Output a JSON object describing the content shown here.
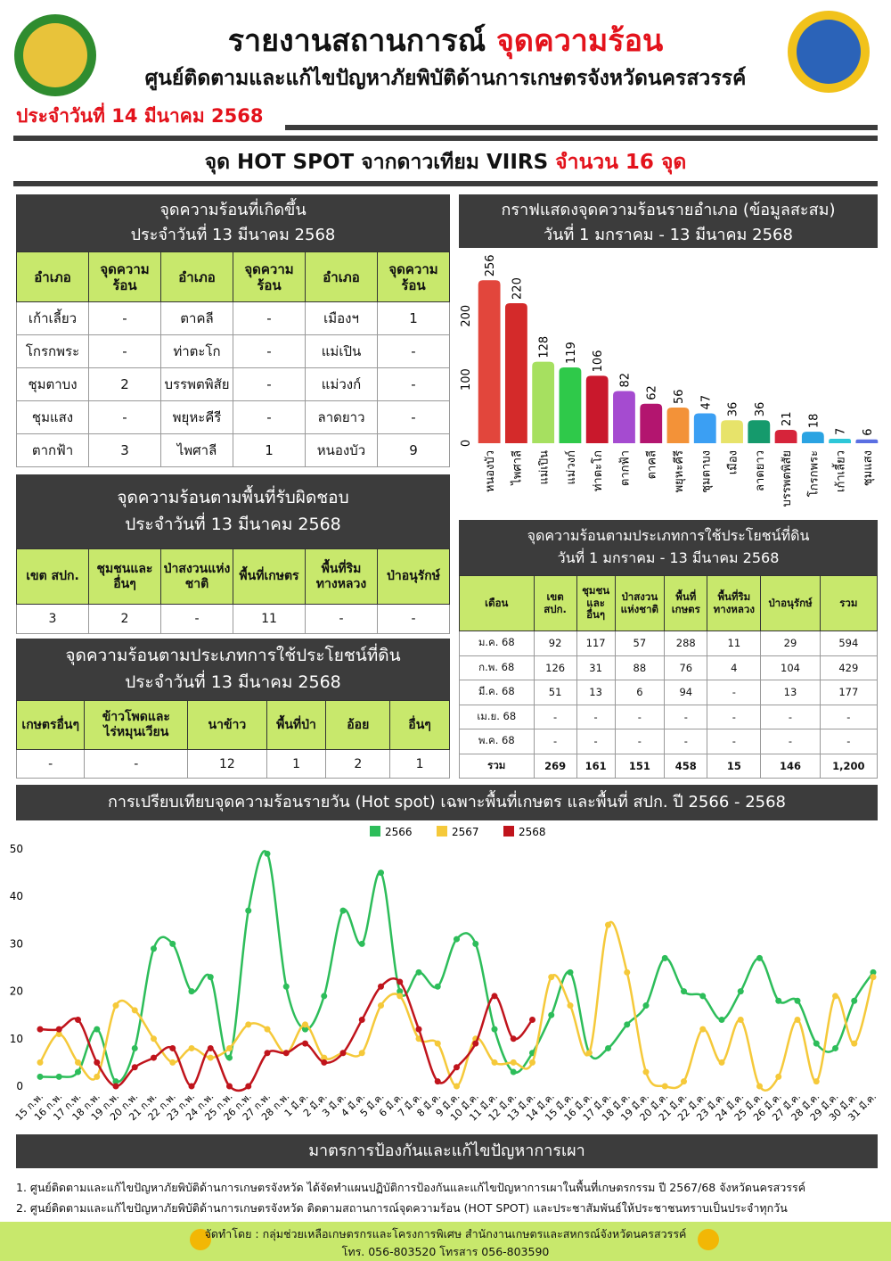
{
  "header": {
    "title_main": "รายงานสถานการณ์",
    "title_highlight": "จุดความร้อน",
    "subtitle": "ศูนย์ติดตามและแก้ไขปัญหาภัยพิบัติด้านการเกษตรจังหวัดนครสวรรค์",
    "date": "ประจำวันที่ 14 มีนาคม 2568"
  },
  "banner": {
    "text": "จุด HOT SPOT จากดาวเทียม VIIRS",
    "count": "จำนวน 16 จุด"
  },
  "tables": [
    {
      "title": [
        "จุดความร้อนที่เกิดขึ้น",
        "ประจำวันที่ 13 มีนาคม 2568"
      ],
      "header": [
        "อำเภอ",
        "จุดความ\nร้อน",
        "อำเภอ",
        "จุดความ\nร้อน",
        "อำเภอ",
        "จุดความ\nร้อน"
      ],
      "rows": [
        [
          "เก้าเลี้ยว",
          "-",
          "ตาคลี",
          "-",
          "เมืองฯ",
          "1"
        ],
        [
          "โกรกพระ",
          "-",
          "ท่าตะโก",
          "-",
          "แม่เปิน",
          "-"
        ],
        [
          "ชุมตาบง",
          "2",
          "บรรพตพิสัย",
          "-",
          "แม่วงก์",
          "-"
        ],
        [
          "ชุมแสง",
          "-",
          "พยุหะคีรี",
          "-",
          "ลาดยาว",
          "-"
        ],
        [
          "ตากฟ้า",
          "3",
          "ไพศาลี",
          "1",
          "หนองบัว",
          "9"
        ]
      ]
    },
    {
      "title": [
        "จุดความร้อนตามพื้นที่รับผิดชอบ",
        "ประจำวันที่ 13 มีนาคม 2568"
      ],
      "header": [
        "เขต สปก.",
        "ชุมชนและ\nอื่นๆ",
        "ป่าสงวนแห่ง\nชาติ",
        "พื้นที่เกษตร",
        "พื้นที่ริม\nทางหลวง",
        "ป่าอนุรักษ์"
      ],
      "rows": [
        [
          "3",
          "2",
          "-",
          "11",
          "-",
          "-"
        ]
      ]
    },
    {
      "title": [
        "จุดความร้อนตามประเภทการใช้ประโยชน์ที่ดิน",
        "ประจำวันที่ 13 มีนาคม 2568"
      ],
      "header": [
        "เกษตรอื่นๆ",
        "ข้าวโพดและ\nไร่หมุนเวียน",
        "นาข้าว",
        "พื้นที่ป่า",
        "อ้อย",
        "อื่นๆ"
      ],
      "rows": [
        [
          "-",
          "-",
          "12",
          "1",
          "2",
          "1"
        ]
      ]
    },
    {
      "title": [
        "จุดความร้อนตามประเภทการใช้ประโยชน์ที่ดิน",
        "วันที่ 1 มกราคม - 13 มีนาคม 2568"
      ],
      "header": [
        "เดือน",
        "เขต\nสปก.",
        "ชุมชน\nและ\nอื่นๆ",
        "ป่าสงวน\nแห่งชาติ",
        "พื้นที่\nเกษตร",
        "พื้นที่ริม\nทางหลวง",
        "ป่าอนุรักษ์",
        "รวม"
      ],
      "rows": [
        [
          "ม.ค. 68",
          "92",
          "117",
          "57",
          "288",
          "11",
          "29",
          "594"
        ],
        [
          "ก.พ. 68",
          "126",
          "31",
          "88",
          "76",
          "4",
          "104",
          "429"
        ],
        [
          "มี.ค. 68",
          "51",
          "13",
          "6",
          "94",
          "-",
          "13",
          "177"
        ],
        [
          "เม.ย. 68",
          "-",
          "-",
          "-",
          "-",
          "-",
          "-",
          "-"
        ],
        [
          "พ.ค. 68",
          "-",
          "-",
          "-",
          "-",
          "-",
          "-",
          "-"
        ],
        [
          "รวม",
          "269",
          "161",
          "151",
          "458",
          "15",
          "146",
          "1,200"
        ]
      ]
    }
  ],
  "chart_data": [
    {
      "type": "bar",
      "title": [
        "กราฟแสดงจุดความร้อนรายอำเภอ (ข้อมูลสะสม)",
        "วันที่ 1 มกราคม - 13 มีนาคม 2568"
      ],
      "categories": [
        "หนองบัว",
        "ไพศาลี",
        "แม่เปิน",
        "แม่วงก์",
        "ท่าตะโก",
        "ตากฟ้า",
        "ตาคลี",
        "พยุหะคีรี",
        "ชุมตาบง",
        "เมือง",
        "ลาดยาว",
        "บรรพตพิสัย",
        "โกรกพระ",
        "เก้าเลี้ยว",
        "ชุมแสง"
      ],
      "values": [
        256,
        220,
        128,
        119,
        106,
        82,
        62,
        56,
        47,
        36,
        36,
        21,
        18,
        7,
        6
      ],
      "colors": [
        "#e2463c",
        "#d42a2a",
        "#a6e060",
        "#2fc94a",
        "#c9182c",
        "#a54bd0",
        "#b3156f",
        "#f39238",
        "#3b9ff3",
        "#e7e36a",
        "#159a6c",
        "#d6243a",
        "#2aa3e2",
        "#2dc7d8",
        "#5a6fe2"
      ],
      "ylim": [
        0,
        290
      ],
      "yticks": [
        0,
        100,
        200
      ]
    },
    {
      "type": "line",
      "title": "การเปรียบเทียบจุดความร้อนรายวัน (Hot spot)  เฉพาะพื้นที่เกษตร และพื้นที่ สปก. ปี 2566 - 2568",
      "categories": [
        "15 ก.พ.",
        "16 ก.พ.",
        "17 ก.พ.",
        "18 ก.พ.",
        "19 ก.พ.",
        "20 ก.พ.",
        "21 ก.พ.",
        "22 ก.พ.",
        "23 ก.พ.",
        "24 ก.พ.",
        "25 ก.พ.",
        "26 ก.พ.",
        "27 ก.พ.",
        "28 ก.พ.",
        "1 มี.ค.",
        "2 มี.ค.",
        "3 มี.ค.",
        "4 มี.ค.",
        "5 มี.ค.",
        "6 มี.ค.",
        "7 มี.ค.",
        "8 มี.ค.",
        "9 มี.ค.",
        "10 มี.ค.",
        "11 มี.ค.",
        "12 มี.ค.",
        "13 มี.ค.",
        "14 มี.ค.",
        "15 มี.ค.",
        "16 มี.ค.",
        "17 มี.ค.",
        "18 มี.ค.",
        "19 มี.ค.",
        "20 มี.ค.",
        "21 มี.ค.",
        "22 มี.ค.",
        "23 มี.ค.",
        "24 มี.ค.",
        "25 มี.ค.",
        "26 มี.ค.",
        "27 มี.ค.",
        "28 มี.ค.",
        "29 มี.ค.",
        "30 มี.ค.",
        "31 มี.ค."
      ],
      "series": [
        {
          "name": "2566",
          "color": "#2dbd5a",
          "values": [
            2,
            2,
            3,
            12,
            1,
            8,
            29,
            30,
            20,
            23,
            6,
            37,
            49,
            21,
            12,
            19,
            37,
            30,
            45,
            20,
            24,
            21,
            31,
            30,
            12,
            3,
            7,
            15,
            24,
            7,
            8,
            13,
            17,
            27,
            20,
            19,
            14,
            20,
            27,
            18,
            18,
            9,
            8,
            18,
            24
          ]
        },
        {
          "name": "2567",
          "color": "#f5c93a",
          "values": [
            5,
            11,
            5,
            2,
            17,
            16,
            10,
            5,
            8,
            6,
            8,
            13,
            12,
            7,
            13,
            6,
            7,
            7,
            17,
            19,
            10,
            9,
            0,
            10,
            5,
            5,
            5,
            23,
            17,
            7,
            34,
            24,
            3,
            0,
            1,
            12,
            5,
            14,
            0,
            2,
            14,
            1,
            19,
            9,
            23
          ]
        },
        {
          "name": "2568",
          "color": "#c0141c",
          "values": [
            12,
            12,
            14,
            5,
            0,
            4,
            6,
            8,
            0,
            8,
            0,
            0,
            7,
            7,
            9,
            5,
            7,
            14,
            21,
            22,
            12,
            1,
            4,
            9,
            19,
            10,
            14,
            null,
            null,
            null,
            null,
            null,
            null,
            null,
            null,
            null,
            null,
            null,
            null,
            null,
            null,
            null,
            null,
            null,
            null
          ]
        }
      ],
      "ylim": [
        0,
        50
      ],
      "yticks": [
        0,
        10,
        20,
        30,
        40,
        50
      ]
    }
  ],
  "measures": {
    "title": "มาตรการป้องกันและแก้ไขปัญหาการเผา",
    "items": [
      "1. ศูนย์ติดตามและแก้ไขปัญหาภัยพิบัติด้านการเกษตรจังหวัด ได้จัดทำแผนปฏิบัติการป้องกันและแก้ไขปัญหาการเผาในพื้นที่เกษตรกรรม ปี 2567/68 จังหวัดนครสวรรค์",
      "2. ศูนย์ติดตามและแก้ไขปัญหาภัยพิบัติด้านการเกษตรจังหวัด ติดตามสถานการณ์จุดความร้อน (HOT SPOT) และประชาสัมพันธ์ให้ประชาชนทราบเป็นประจำทุกวัน"
    ]
  },
  "footer": {
    "organizer": "จัดทำโดย : กลุ่มช่วยเหลือเกษตรกรและโครงการพิเศษ สำนักงานเกษตรและสหกรณ์จังหวัดนครสวรรค์",
    "contact": "โทร. 056-803520 โทรสาร 056-803590"
  }
}
